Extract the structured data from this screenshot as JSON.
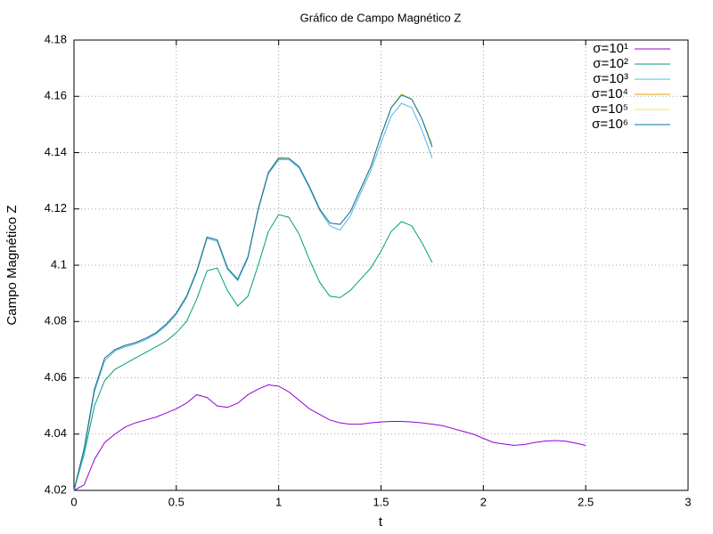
{
  "chart_data": {
    "type": "line",
    "title": "Gráfico de Campo Magnético Z",
    "x_label": "t",
    "y_label": "Campo Magnético Z",
    "x": [
      0,
      0.05,
      0.1,
      0.15,
      0.2,
      0.25,
      0.3,
      0.35,
      0.4,
      0.45,
      0.5,
      0.55,
      0.6,
      0.65,
      0.7,
      0.75,
      0.8,
      0.85,
      0.9,
      0.95,
      1,
      1.05,
      1.1,
      1.15,
      1.2,
      1.25,
      1.3,
      1.35,
      1.4,
      1.45,
      1.5,
      1.55,
      1.6,
      1.65,
      1.7,
      1.75,
      1.8,
      1.85,
      1.9,
      1.95,
      2,
      2.05,
      2.1,
      2.15,
      2.2,
      2.25,
      2.3,
      2.35,
      2.4,
      2.45,
      2.5
    ],
    "xlim": [
      0,
      3
    ],
    "xticks": [
      0,
      0.5,
      1,
      1.5,
      2,
      2.5,
      3
    ],
    "ylim": [
      4.02,
      4.18
    ],
    "yticks": [
      4.02,
      4.04,
      4.06,
      4.08,
      4.1,
      4.12,
      4.14,
      4.16,
      4.18
    ],
    "grid": true,
    "legend": "top-right",
    "series": [
      {
        "name": "σ=10¹",
        "color": "#9400d3",
        "values": [
          4.02,
          4.022,
          4.031,
          4.037,
          4.04,
          4.0425,
          4.044,
          4.045,
          4.046,
          4.0475,
          4.049,
          4.051,
          4.054,
          4.053,
          4.05,
          4.0495,
          4.051,
          4.054,
          4.056,
          4.0575,
          4.057,
          4.055,
          4.052,
          4.049,
          4.047,
          4.045,
          4.044,
          4.0435,
          4.0435,
          4.044,
          4.0443,
          4.0445,
          4.0445,
          4.0443,
          4.044,
          4.0435,
          4.043,
          4.042,
          4.041,
          4.04,
          4.0385,
          4.037,
          4.0365,
          4.036,
          4.0363,
          4.037,
          4.0375,
          4.0377,
          4.0375,
          4.0368,
          4.036
        ]
      },
      {
        "name": "σ=10²",
        "color": "#009e73",
        "values": [
          4.02,
          4.033,
          4.05,
          4.059,
          4.063,
          4.065,
          4.067,
          4.069,
          4.071,
          4.073,
          4.076,
          4.08,
          4.088,
          4.098,
          4.099,
          4.091,
          4.0855,
          4.089,
          4.1,
          4.112,
          4.118,
          4.117,
          4.111,
          4.102,
          4.094,
          4.089,
          4.0885,
          4.091,
          4.095,
          4.099,
          4.105,
          4.112,
          4.1155,
          4.114,
          4.108,
          4.101,
          null,
          null,
          null,
          null,
          null,
          null,
          null,
          null,
          null,
          null,
          null,
          null,
          null,
          null,
          null
        ]
      },
      {
        "name": "σ=10³",
        "color": "#56b4e9",
        "values": [
          4.02,
          4.034,
          4.055,
          4.066,
          4.0695,
          4.071,
          4.072,
          4.0735,
          4.0755,
          4.0785,
          4.0825,
          4.0885,
          4.0975,
          4.1095,
          4.1085,
          4.0985,
          4.0945,
          4.1025,
          4.1195,
          4.1325,
          4.1375,
          4.1375,
          4.1345,
          4.1275,
          4.1195,
          4.114,
          4.1125,
          4.1175,
          4.1255,
          4.1335,
          4.1435,
          4.153,
          4.1575,
          4.156,
          4.148,
          4.138,
          null,
          null,
          null,
          null,
          null,
          null,
          null,
          null,
          null,
          null,
          null,
          null,
          null,
          null,
          null
        ]
      },
      {
        "name": "σ=10⁴",
        "color": "#e69f00",
        "values": [
          4.02,
          4.035,
          4.056,
          4.067,
          4.07,
          4.0715,
          4.0725,
          4.074,
          4.076,
          4.079,
          4.083,
          4.089,
          4.098,
          4.11,
          4.109,
          4.099,
          4.095,
          4.103,
          4.12,
          4.133,
          4.138,
          4.138,
          4.135,
          4.128,
          4.12,
          4.115,
          4.1145,
          4.119,
          4.127,
          4.135,
          4.146,
          4.156,
          4.1605,
          4.159,
          4.152,
          4.143,
          null,
          null,
          null,
          null,
          null,
          null,
          null,
          null,
          null,
          null,
          null,
          null,
          null,
          null,
          null
        ]
      },
      {
        "name": "σ=10⁵",
        "color": "#f0e442",
        "values": [
          4.02,
          4.035,
          4.056,
          4.067,
          4.07,
          4.0715,
          4.0725,
          4.074,
          4.076,
          4.079,
          4.083,
          4.089,
          4.098,
          4.11,
          4.109,
          4.099,
          4.095,
          4.103,
          4.12,
          4.133,
          4.1385,
          4.138,
          4.135,
          4.128,
          4.12,
          4.115,
          4.1145,
          4.119,
          4.127,
          4.135,
          4.146,
          4.156,
          4.161,
          4.159,
          4.152,
          4.143,
          null,
          null,
          null,
          null,
          null,
          null,
          null,
          null,
          null,
          null,
          null,
          null,
          null,
          null,
          null
        ]
      },
      {
        "name": "σ=10⁶",
        "color": "#0072b2",
        "values": [
          4.02,
          4.035,
          4.056,
          4.067,
          4.07,
          4.0715,
          4.0725,
          4.074,
          4.076,
          4.079,
          4.083,
          4.089,
          4.098,
          4.11,
          4.109,
          4.099,
          4.095,
          4.103,
          4.12,
          4.133,
          4.138,
          4.138,
          4.135,
          4.128,
          4.12,
          4.115,
          4.1145,
          4.119,
          4.127,
          4.135,
          4.146,
          4.156,
          4.1605,
          4.159,
          4.152,
          4.142,
          null,
          null,
          null,
          null,
          null,
          null,
          null,
          null,
          null,
          null,
          null,
          null,
          null,
          null,
          null
        ]
      }
    ]
  }
}
